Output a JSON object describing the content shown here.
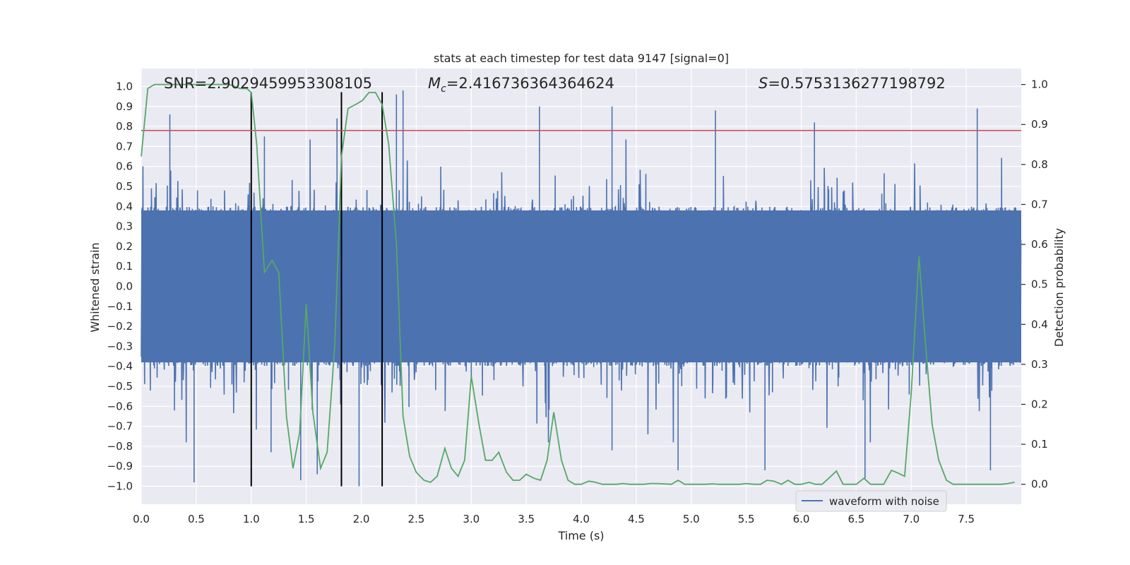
{
  "chart_data": {
    "type": "line",
    "title": "stats at each timestep for test data 9147 [signal=0]",
    "xlabel": "Time (s)",
    "ylabel_left": "Whitened strain",
    "ylabel_right": "Detection probability",
    "xlim": [
      0.0,
      8.0
    ],
    "ylim_left": [
      -1.09,
      1.09
    ],
    "ylim_right": [
      -0.05,
      1.04
    ],
    "x_ticks": [
      "0.0",
      "0.5",
      "1.0",
      "1.5",
      "2.0",
      "2.5",
      "3.0",
      "3.5",
      "4.0",
      "4.5",
      "5.0",
      "5.5",
      "6.0",
      "6.5",
      "7.0",
      "7.5"
    ],
    "y_ticks_left": [
      "1.0",
      "0.9",
      "0.8",
      "0.7",
      "0.6",
      "0.5",
      "0.4",
      "0.3",
      "0.2",
      "0.1",
      "0.0",
      "-0.1",
      "-0.2",
      "-0.3",
      "-0.4",
      "-0.5",
      "-0.6",
      "-0.7",
      "-0.8",
      "-0.9",
      "-1.0"
    ],
    "y_ticks_right": [
      "1.0",
      "0.9",
      "0.8",
      "0.7",
      "0.6",
      "0.5",
      "0.4",
      "0.3",
      "0.2",
      "0.1",
      "0.0"
    ],
    "annotations": {
      "snr": "SNR=2.9029459953308105",
      "mc_symbol": "M",
      "mc_sub": "c",
      "mc_value": "=2.416736364364624",
      "s_symbol": "S",
      "s_value": "=0.5753136277198792"
    },
    "threshold": 0.78,
    "vertical_lines": [
      1.0,
      1.82,
      2.19
    ],
    "legend": {
      "label": "waveform with noise",
      "position": "lower-right"
    },
    "series": [
      {
        "name": "waveform with noise",
        "axis": "left",
        "kind": "noise",
        "envelope": 0.38,
        "peak_range": [
          -1.0,
          0.98
        ],
        "spikes": [
          {
            "x": 0.26,
            "y": 0.86
          },
          {
            "x": 0.48,
            "y": -0.98
          },
          {
            "x": 1.12,
            "y": 0.75
          },
          {
            "x": 1.18,
            "y": -0.83
          },
          {
            "x": 1.45,
            "y": -0.97
          },
          {
            "x": 1.6,
            "y": -0.94
          },
          {
            "x": 1.78,
            "y": 0.84
          },
          {
            "x": 1.98,
            "y": -1.0
          },
          {
            "x": 2.38,
            "y": 0.98
          },
          {
            "x": 2.32,
            "y": 0.96
          },
          {
            "x": 3.0,
            "y": -0.47
          },
          {
            "x": 3.62,
            "y": 0.9
          },
          {
            "x": 4.28,
            "y": 0.9
          },
          {
            "x": 4.28,
            "y": -0.82
          },
          {
            "x": 4.88,
            "y": -0.92
          },
          {
            "x": 5.22,
            "y": 0.88
          },
          {
            "x": 5.67,
            "y": -0.92
          },
          {
            "x": 6.12,
            "y": 0.82
          },
          {
            "x": 6.58,
            "y": -0.96
          },
          {
            "x": 7.6,
            "y": 0.89
          },
          {
            "x": 7.72,
            "y": -0.92
          },
          {
            "x": 7.06,
            "y": -0.35
          }
        ]
      },
      {
        "name": "detection probability",
        "axis": "right",
        "x": [
          0.0,
          0.06,
          0.12,
          0.2,
          0.3,
          0.4,
          0.5,
          0.6,
          0.7,
          0.8,
          0.9,
          0.96,
          1.0,
          1.05,
          1.12,
          1.19,
          1.25,
          1.32,
          1.38,
          1.44,
          1.5,
          1.56,
          1.63,
          1.69,
          1.76,
          1.82,
          1.88,
          1.95,
          2.01,
          2.07,
          2.13,
          2.19,
          2.25,
          2.32,
          2.38,
          2.44,
          2.5,
          2.57,
          2.63,
          2.69,
          2.76,
          2.82,
          2.88,
          2.94,
          3.0,
          3.07,
          3.13,
          3.19,
          3.25,
          3.32,
          3.38,
          3.44,
          3.5,
          3.57,
          3.63,
          3.69,
          3.75,
          3.82,
          3.88,
          3.94,
          4.0,
          4.07,
          4.13,
          4.19,
          4.25,
          4.32,
          4.38,
          4.44,
          4.5,
          4.57,
          4.63,
          4.69,
          4.75,
          4.82,
          4.88,
          4.94,
          5.0,
          5.07,
          5.13,
          5.19,
          5.25,
          5.32,
          5.38,
          5.44,
          5.5,
          5.57,
          5.63,
          5.69,
          5.75,
          5.82,
          5.88,
          5.94,
          6.0,
          6.07,
          6.13,
          6.19,
          6.25,
          6.32,
          6.38,
          6.44,
          6.5,
          6.57,
          6.63,
          6.69,
          6.75,
          6.82,
          6.88,
          6.94,
          7.0,
          7.07,
          7.13,
          7.19,
          7.25,
          7.32,
          7.38,
          7.44,
          7.5,
          7.57,
          7.63,
          7.69,
          7.75,
          7.82,
          7.88,
          7.94
        ],
        "values": [
          0.82,
          0.99,
          1.0,
          1.0,
          1.0,
          1.0,
          1.0,
          1.0,
          1.0,
          1.0,
          0.99,
          0.99,
          0.98,
          0.85,
          0.53,
          0.56,
          0.53,
          0.17,
          0.04,
          0.13,
          0.45,
          0.18,
          0.04,
          0.08,
          0.35,
          0.82,
          0.94,
          0.95,
          0.96,
          0.98,
          0.98,
          0.95,
          0.85,
          0.6,
          0.17,
          0.07,
          0.03,
          0.01,
          0.005,
          0.02,
          0.09,
          0.04,
          0.02,
          0.06,
          0.27,
          0.15,
          0.06,
          0.06,
          0.08,
          0.03,
          0.01,
          0.01,
          0.025,
          0.015,
          0.01,
          0.06,
          0.18,
          0.06,
          0.01,
          0.0,
          0.0,
          0.008,
          0.005,
          0.0,
          0.0,
          0.0,
          0.002,
          0.0,
          0.0,
          0.0,
          0.002,
          0.002,
          0.001,
          0.0,
          0.01,
          0.0,
          0.0,
          0.0,
          0.0,
          0.001,
          0.0,
          0.0,
          0.0,
          0.0,
          0.002,
          0.0,
          0.0,
          0.01,
          0.008,
          0.0,
          0.01,
          0.0,
          0.0,
          0.005,
          0.0,
          0.0,
          0.015,
          0.033,
          0.0,
          0.0,
          0.0,
          0.015,
          0.0,
          0.0,
          0.0,
          0.035,
          0.028,
          0.02,
          0.23,
          0.57,
          0.35,
          0.15,
          0.06,
          0.01,
          0.0,
          0.0,
          0.0,
          0.0,
          0.0,
          0.0,
          0.0,
          0.0,
          0.002,
          0.005
        ],
        "color": "#55a868"
      }
    ],
    "colors": {
      "background": "#eaeaf2",
      "grid": "#ffffff",
      "waveform": "#4c72b0",
      "probability": "#55a868",
      "threshold": "#c44e52",
      "vline": "#000000"
    }
  }
}
